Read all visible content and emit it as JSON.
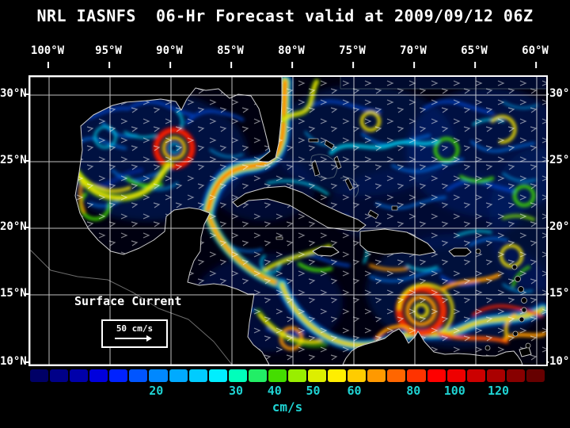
{
  "title": "NRL IASNFS  06-Hr Forecast valid at 2009/09/12 06Z",
  "axes": {
    "lon": [
      "100°W",
      "95°W",
      "90°W",
      "85°W",
      "80°W",
      "75°W",
      "70°W",
      "65°W",
      "60°W"
    ],
    "lat_left": [
      "30°N",
      "25°N",
      "20°N",
      "15°N",
      "10°N"
    ],
    "lat_right": [
      "30°N",
      "25°N",
      "20°N",
      "15°N",
      "10°N"
    ]
  },
  "map": {
    "annotation": "Surface Current",
    "scale_label": "50 cm/s"
  },
  "colorbar": {
    "units_label": "cm/s",
    "tick_color": "#1fd2d2",
    "colors": [
      "#000066",
      "#000088",
      "#0000aa",
      "#0000dd",
      "#0022ff",
      "#0055ff",
      "#0088ff",
      "#00aaff",
      "#00ccff",
      "#00eeff",
      "#00ffbb",
      "#22ee66",
      "#44dd00",
      "#99ee00",
      "#ddee00",
      "#ffee00",
      "#ffcc00",
      "#ff9900",
      "#ff6600",
      "#ff3300",
      "#ff0000",
      "#ee0000",
      "#cc0000",
      "#aa0000",
      "#880000",
      "#660000"
    ],
    "ticks": [
      {
        "label": "20",
        "pos": 24.5
      },
      {
        "label": "30",
        "pos": 40
      },
      {
        "label": "40",
        "pos": 47.5
      },
      {
        "label": "50",
        "pos": 55
      },
      {
        "label": "60",
        "pos": 63
      },
      {
        "label": "80",
        "pos": 74.5
      },
      {
        "label": "100",
        "pos": 82.5
      },
      {
        "label": "120",
        "pos": 91
      }
    ]
  },
  "chart_data": {
    "type": "heatmap",
    "title": "NRL IASNFS 06-Hr Forecast valid at 2009/09/12 06Z",
    "model": "NRL IASNFS",
    "forecast": "06-Hr Forecast",
    "valid_time": "2009/09/12 06Z",
    "variable": "Surface Current",
    "units": "cm/s",
    "lon_range_deg_west": [
      100,
      60
    ],
    "lat_range_deg_north": [
      10,
      30
    ],
    "grid_spacing_deg": 5,
    "reference_vector_cm_per_s": 50,
    "colorbar_ticks_cm_per_s": [
      20,
      30,
      40,
      50,
      60,
      80,
      100,
      120
    ],
    "colorbar_scale": "dark blue = weak current, dark red = >120 cm/s",
    "visible_features": [
      "Warm-core ring (red circular eddy) in central Gulf of Mexico near 90W 26N",
      "Strong Florida Current / Gulf Stream band flowing north near 80W east of Florida",
      "Yucatan Current flowing north through the Yucatan Channel",
      "Westward Caribbean Current meandering along 13-15N",
      "Intense eddy (red spiral) in the eastern Caribbean near 70W 14N",
      "Weak dark-blue background flow with small eddies over the open Atlantic"
    ]
  }
}
